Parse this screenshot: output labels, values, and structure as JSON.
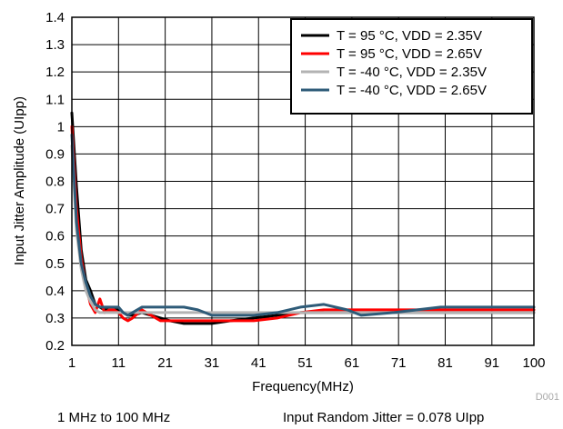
{
  "chart_data": {
    "type": "line",
    "xlabel": "Frequency(MHz)",
    "ylabel": "Input Jitter Amplitude (UIpp)",
    "xlim": [
      1,
      100
    ],
    "ylim": [
      0.2,
      1.4
    ],
    "x_ticks": [
      1,
      11,
      21,
      31,
      41,
      51,
      61,
      71,
      81,
      91,
      100
    ],
    "y_ticks": [
      0.2,
      0.3,
      0.4,
      0.5,
      0.6,
      0.7,
      0.8,
      0.9,
      1.0,
      1.1,
      1.2,
      1.3,
      1.4
    ],
    "y_tick_labels": [
      "0.2",
      "0.3",
      "0.4",
      "0.5",
      "0.6",
      "0.7",
      "0.8",
      "0.9",
      "1",
      "1.1",
      "1.2",
      "1.3",
      "1.4"
    ],
    "grid": true,
    "legend_position": "top-right",
    "series": [
      {
        "name": "T = 95 °C, VDD = 2.35V",
        "color": "#000000",
        "x": [
          1,
          2,
          3,
          4,
          5,
          6,
          7,
          8,
          9,
          10,
          11,
          12,
          13,
          14,
          16,
          18,
          20,
          22,
          25,
          28,
          31,
          35,
          40,
          45,
          50,
          55,
          60,
          70,
          80,
          90,
          100
        ],
        "y": [
          1.05,
          0.78,
          0.55,
          0.44,
          0.4,
          0.35,
          0.34,
          0.33,
          0.33,
          0.33,
          0.33,
          0.32,
          0.31,
          0.31,
          0.32,
          0.31,
          0.3,
          0.29,
          0.28,
          0.28,
          0.28,
          0.29,
          0.3,
          0.31,
          0.32,
          0.32,
          0.32,
          0.32,
          0.32,
          0.32,
          0.32
        ]
      },
      {
        "name": "T = 95 °C, VDD = 2.65V",
        "color": "#ff0000",
        "x": [
          1,
          2,
          3,
          4,
          5,
          6,
          7,
          8,
          9,
          10,
          11,
          12,
          13,
          14,
          16,
          18,
          20,
          22,
          25,
          28,
          31,
          35,
          40,
          45,
          50,
          55,
          60,
          70,
          80,
          90,
          100
        ],
        "y": [
          1.0,
          0.7,
          0.52,
          0.42,
          0.35,
          0.32,
          0.37,
          0.32,
          0.33,
          0.33,
          0.32,
          0.3,
          0.29,
          0.3,
          0.33,
          0.31,
          0.29,
          0.29,
          0.29,
          0.29,
          0.29,
          0.29,
          0.29,
          0.3,
          0.32,
          0.33,
          0.33,
          0.33,
          0.33,
          0.33,
          0.33
        ]
      },
      {
        "name": "T = -40 °C, VDD = 2.35V",
        "color": "#b3b3b3",
        "x": [
          1,
          2,
          3,
          4,
          5,
          6,
          7,
          8,
          9,
          10,
          11,
          12,
          14,
          16,
          20,
          25,
          30,
          40,
          50,
          60,
          70,
          80,
          90,
          100
        ],
        "y": [
          0.93,
          0.62,
          0.48,
          0.4,
          0.36,
          0.33,
          0.32,
          0.32,
          0.32,
          0.32,
          0.32,
          0.32,
          0.32,
          0.32,
          0.32,
          0.32,
          0.32,
          0.32,
          0.32,
          0.32,
          0.32,
          0.32,
          0.32,
          0.32
        ]
      },
      {
        "name": "T = -40 °C, VDD = 2.65V",
        "color": "#2e5b78",
        "x": [
          1,
          2,
          3,
          4,
          5,
          6,
          7,
          8,
          9,
          10,
          11,
          12,
          13,
          14,
          16,
          18,
          20,
          22,
          25,
          28,
          31,
          35,
          40,
          45,
          50,
          55,
          60,
          63,
          70,
          80,
          90,
          100
        ],
        "y": [
          0.97,
          0.65,
          0.5,
          0.43,
          0.38,
          0.35,
          0.34,
          0.34,
          0.34,
          0.34,
          0.34,
          0.32,
          0.31,
          0.32,
          0.34,
          0.34,
          0.34,
          0.34,
          0.34,
          0.33,
          0.31,
          0.31,
          0.31,
          0.32,
          0.34,
          0.35,
          0.33,
          0.31,
          0.32,
          0.34,
          0.34,
          0.34
        ]
      }
    ]
  },
  "tag": "D001",
  "footer": {
    "left": "1 MHz to 100 MHz",
    "right": "Input Random Jitter = 0.078 UIpp"
  }
}
